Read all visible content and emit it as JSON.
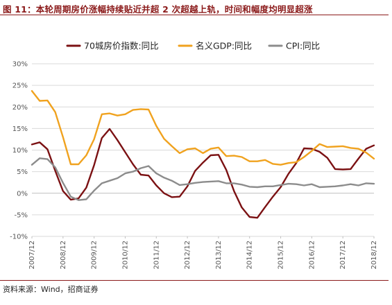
{
  "header": {
    "title": "图 11：本轮周期房价涨幅持续贴近并超 2 次超越上轨，时间和幅度均明显超涨"
  },
  "footer": {
    "source": "资料来源：Wind，招商证券"
  },
  "chart_data": {
    "type": "line",
    "title": "图 11：本轮周期房价涨幅持续贴近并超 2 次超越上轨，时间和幅度均明显超涨",
    "xlabel": "",
    "ylabel": "",
    "ylim": [
      -10,
      30
    ],
    "yticks": [
      -10,
      -5,
      0,
      5,
      10,
      15,
      20,
      25,
      30
    ],
    "ytick_labels": [
      "-10%",
      "-5%",
      "0%",
      "5%",
      "10%",
      "15%",
      "20%",
      "25%",
      "30%"
    ],
    "x_tick_labels": [
      "2007/12",
      "2008/12",
      "2009/12",
      "2010/12",
      "2011/12",
      "2012/12",
      "2013/12",
      "2014/12",
      "2015/12",
      "2016/12",
      "2017/12",
      "2018/12"
    ],
    "grid": true,
    "legend_position": "top",
    "x": [
      "2007Q4",
      "2008Q1",
      "2008Q2",
      "2008Q3",
      "2008Q4",
      "2009Q1",
      "2009Q2",
      "2009Q3",
      "2009Q4",
      "2010Q1",
      "2010Q2",
      "2010Q3",
      "2010Q4",
      "2011Q1",
      "2011Q2",
      "2011Q3",
      "2011Q4",
      "2012Q1",
      "2012Q2",
      "2012Q3",
      "2012Q4",
      "2013Q1",
      "2013Q2",
      "2013Q3",
      "2013Q4",
      "2014Q1",
      "2014Q2",
      "2014Q3",
      "2014Q4",
      "2015Q1",
      "2015Q2",
      "2015Q3",
      "2015Q4",
      "2016Q1",
      "2016Q2",
      "2016Q3",
      "2016Q4",
      "2017Q1",
      "2017Q2",
      "2017Q3",
      "2017Q4",
      "2018Q1",
      "2018Q2",
      "2018Q3",
      "2018Q4"
    ],
    "series": [
      {
        "name": "70城房价指数:同比",
        "color": "#7b1113",
        "values": [
          11.3,
          11.8,
          10.2,
          5.2,
          0.5,
          -1.5,
          -1.2,
          1.3,
          6.5,
          12.8,
          14.9,
          12.3,
          9.5,
          6.7,
          4.3,
          4.1,
          1.8,
          0.0,
          -0.9,
          -0.8,
          1.6,
          5.2,
          7.1,
          8.8,
          8.9,
          5.4,
          0.5,
          -3.3,
          -5.5,
          -5.7,
          -3.2,
          -0.8,
          1.4,
          4.5,
          7.0,
          10.4,
          10.3,
          9.6,
          8.2,
          5.6,
          5.5,
          5.6,
          8.0,
          10.3,
          11.1
        ]
      },
      {
        "name": "名义GDP:同比",
        "color": "#f0a21e",
        "values": [
          23.7,
          21.4,
          21.5,
          18.8,
          13.0,
          6.7,
          6.7,
          8.8,
          12.5,
          18.3,
          18.5,
          18.0,
          18.3,
          19.3,
          19.5,
          19.4,
          15.6,
          12.6,
          10.9,
          9.3,
          10.2,
          10.4,
          9.3,
          10.3,
          10.6,
          8.6,
          8.7,
          8.4,
          7.4,
          7.4,
          7.7,
          6.8,
          6.6,
          7.0,
          7.2,
          8.4,
          9.8,
          11.4,
          10.7,
          10.8,
          10.9,
          10.5,
          10.3,
          9.4,
          8.0
        ]
      },
      {
        "name": "CPI:同比",
        "color": "#8c8c8c",
        "values": [
          6.6,
          8.1,
          7.9,
          6.0,
          2.4,
          -0.8,
          -1.6,
          -1.4,
          0.6,
          2.3,
          2.9,
          3.5,
          4.6,
          5.0,
          5.8,
          6.3,
          4.6,
          3.6,
          2.9,
          1.9,
          2.1,
          2.4,
          2.6,
          2.7,
          2.8,
          2.3,
          2.3,
          2.0,
          1.5,
          1.4,
          1.6,
          1.6,
          1.9,
          2.2,
          2.1,
          1.8,
          2.1,
          1.4,
          1.5,
          1.6,
          1.8,
          2.1,
          1.8,
          2.3,
          2.2
        ]
      }
    ]
  }
}
